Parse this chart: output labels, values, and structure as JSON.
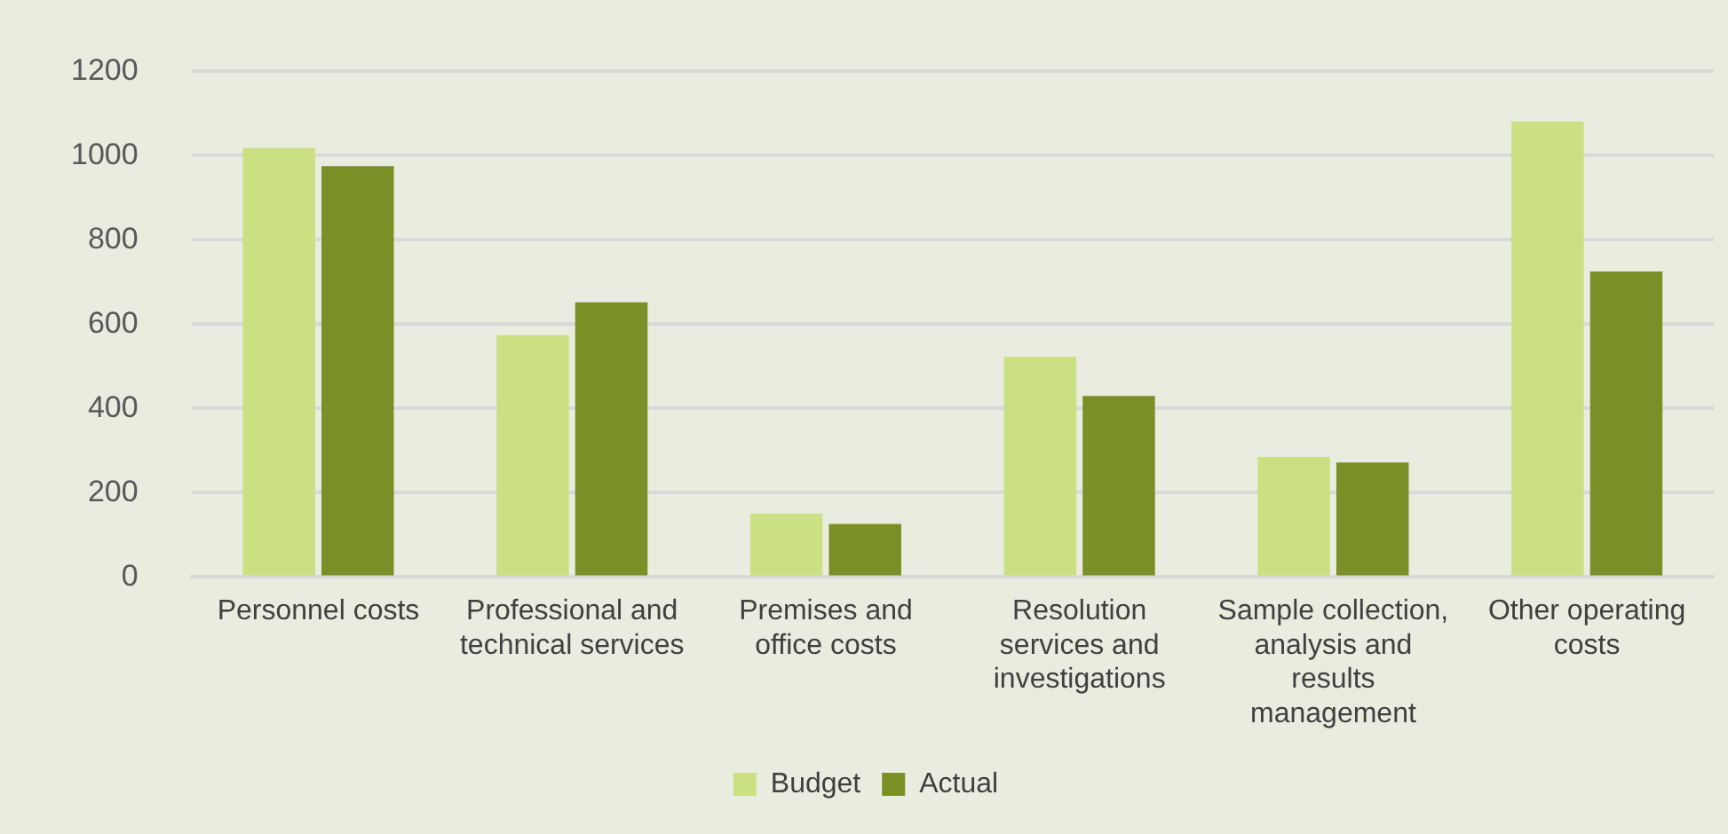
{
  "chart_data": {
    "type": "bar",
    "categories": [
      "Personnel costs",
      "Professional and technical services",
      "Premises and office costs",
      "Resolution services and investigations",
      "Sample collection, analysis and results management",
      "Other operating costs"
    ],
    "series": [
      {
        "name": "Budget",
        "color": "#cbdf83",
        "values": [
          1018,
          574,
          151,
          523,
          285,
          1081
        ]
      },
      {
        "name": "Actual",
        "color": "#7b8f27",
        "values": [
          975,
          652,
          126,
          430,
          272,
          725
        ]
      }
    ],
    "ylim": [
      0,
      1200
    ],
    "yticks": [
      0,
      200,
      400,
      600,
      800,
      1000,
      1200
    ],
    "grid": "y",
    "legend": "bottom"
  }
}
